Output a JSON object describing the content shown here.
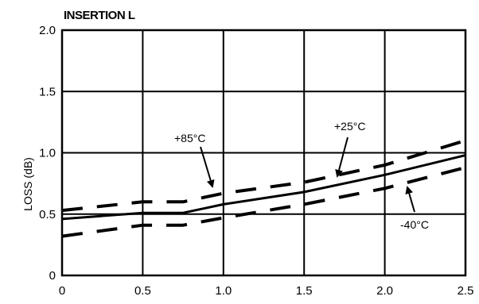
{
  "chart_data": {
    "type": "line",
    "title": "INSERTION L",
    "xlabel": "",
    "ylabel": "LOSS (dB)",
    "xlim": [
      0,
      2.5
    ],
    "ylim": [
      0,
      2.0
    ],
    "grid": true,
    "x_ticks": [
      "0",
      "0.5",
      "1.0",
      "1.5",
      "2.0",
      "2.5"
    ],
    "y_ticks": [
      "0",
      "0.5",
      "1.0",
      "1.5",
      "2.0"
    ],
    "series": [
      {
        "name": "+85°C",
        "style": "dashed",
        "x": [
          0,
          0.5,
          0.75,
          1.0,
          1.5,
          2.0,
          2.5
        ],
        "y": [
          0.53,
          0.6,
          0.6,
          0.67,
          0.76,
          0.9,
          1.1
        ]
      },
      {
        "name": "+25°C",
        "style": "solid",
        "x": [
          0,
          0.5,
          0.75,
          1.0,
          1.5,
          2.0,
          2.5
        ],
        "y": [
          0.46,
          0.51,
          0.51,
          0.58,
          0.68,
          0.82,
          0.98
        ]
      },
      {
        "name": "-40°C",
        "style": "dashed",
        "x": [
          0,
          0.5,
          0.75,
          1.0,
          1.5,
          2.0,
          2.5
        ],
        "y": [
          0.32,
          0.41,
          0.41,
          0.47,
          0.58,
          0.71,
          0.88
        ]
      }
    ],
    "annotations": [
      "+85°C",
      "+25°C",
      "-40°C"
    ]
  }
}
